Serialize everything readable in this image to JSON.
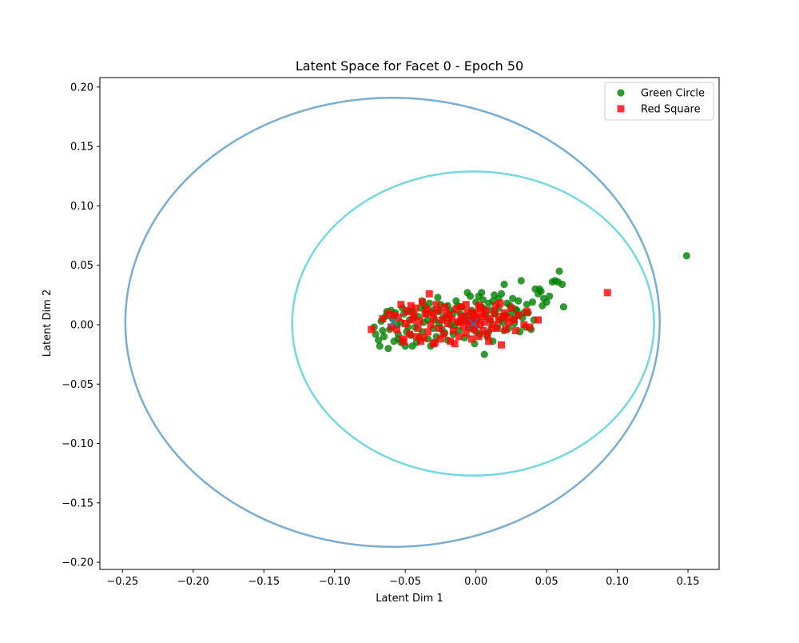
{
  "chart_data": {
    "type": "scatter",
    "title": "Latent Space for Facet 0 - Epoch 50",
    "xlabel": "Latent Dim 1",
    "ylabel": "Latent Dim 2",
    "xlim": [
      -0.266,
      0.172
    ],
    "ylim": [
      -0.206,
      0.208
    ],
    "xticks": [
      -0.25,
      -0.2,
      -0.15,
      -0.1,
      -0.05,
      0.0,
      0.05,
      0.1,
      0.15
    ],
    "xtick_labels": [
      "−0.25",
      "−0.20",
      "−0.15",
      "−0.10",
      "−0.05",
      "0.00",
      "0.05",
      "0.10",
      "0.15"
    ],
    "yticks": [
      -0.2,
      -0.15,
      -0.1,
      -0.05,
      0.0,
      0.05,
      0.1,
      0.15,
      0.2
    ],
    "ytick_labels": [
      "−0.20",
      "−0.15",
      "−0.10",
      "−0.05",
      "0.00",
      "0.05",
      "0.10",
      "0.15",
      "0.20"
    ],
    "grid": false,
    "legend_position": "top-right",
    "series": [
      {
        "name": "Green Circle",
        "marker": "circle",
        "color": "#008000",
        "points": [
          [
            0.149,
            0.058
          ],
          [
            0.062,
            0.015
          ],
          [
            0.059,
            0.045
          ],
          [
            0.061,
            0.034
          ],
          [
            0.058,
            0.036
          ],
          [
            0.056,
            0.037
          ],
          [
            0.054,
            0.036
          ],
          [
            0.048,
            0.022
          ],
          [
            0.046,
            0.028
          ],
          [
            0.045,
            0.03
          ],
          [
            0.042,
            0.03
          ],
          [
            0.04,
            0.019
          ],
          [
            0.036,
            0.017
          ],
          [
            0.034,
            0.01
          ],
          [
            0.032,
            0.037
          ],
          [
            0.03,
            0.02
          ],
          [
            0.028,
            0.013
          ],
          [
            0.027,
            0.005
          ],
          [
            0.025,
            0.01
          ],
          [
            0.022,
            0.018
          ],
          [
            0.02,
            0.034
          ],
          [
            0.018,
            0.026
          ],
          [
            0.016,
            0.022
          ],
          [
            0.013,
            0.025
          ],
          [
            0.011,
            0.012
          ],
          [
            0.009,
            0.018
          ],
          [
            0.007,
            0.008
          ],
          [
            0.005,
            0.021
          ],
          [
            0.004,
            0.027
          ],
          [
            0.002,
            0.024
          ],
          [
            0.0,
            0.019
          ],
          [
            -0.002,
            0.01
          ],
          [
            -0.004,
            0.024
          ],
          [
            -0.006,
            0.027
          ],
          [
            -0.008,
            0.007
          ],
          [
            -0.01,
            0.015
          ],
          [
            -0.012,
            0.002
          ],
          [
            -0.014,
            0.02
          ],
          [
            -0.016,
            0.01
          ],
          [
            -0.018,
            0.012
          ],
          [
            -0.02,
            0.016
          ],
          [
            -0.023,
            0.006
          ],
          [
            -0.025,
            0.017
          ],
          [
            -0.027,
            0.023
          ],
          [
            -0.029,
            0.004
          ],
          [
            -0.031,
            0.012
          ],
          [
            -0.033,
            0.018
          ],
          [
            -0.035,
            0.009
          ],
          [
            -0.037,
            0.002
          ],
          [
            -0.039,
            0.014
          ],
          [
            -0.041,
            0.007
          ],
          [
            -0.043,
            -0.002
          ],
          [
            -0.045,
            0.011
          ],
          [
            -0.047,
            0.004
          ],
          [
            -0.049,
            -0.006
          ],
          [
            -0.051,
            0.009
          ],
          [
            -0.053,
            0.002
          ],
          [
            -0.055,
            -0.008
          ],
          [
            -0.057,
            0.01
          ],
          [
            -0.059,
            0.005
          ],
          [
            -0.061,
            -0.004
          ],
          [
            -0.063,
            0.011
          ],
          [
            -0.065,
            -0.01
          ],
          [
            -0.067,
            0.003
          ],
          [
            -0.069,
            -0.013
          ],
          [
            -0.071,
            -0.008
          ],
          [
            -0.072,
            -0.002
          ],
          [
            -0.068,
            -0.018
          ],
          [
            -0.062,
            -0.02
          ],
          [
            -0.055,
            -0.012
          ],
          [
            -0.05,
            -0.018
          ],
          [
            -0.046,
            -0.009
          ],
          [
            -0.042,
            -0.015
          ],
          [
            -0.038,
            -0.006
          ],
          [
            -0.034,
            -0.012
          ],
          [
            -0.032,
            -0.018
          ],
          [
            -0.028,
            -0.01
          ],
          [
            -0.024,
            -0.004
          ],
          [
            -0.02,
            -0.013
          ],
          [
            -0.016,
            -0.008
          ],
          [
            -0.012,
            -0.005
          ],
          [
            -0.008,
            -0.011
          ],
          [
            -0.004,
            -0.003
          ],
          [
            -0.001,
            -0.016
          ],
          [
            0.003,
            -0.008
          ],
          [
            0.006,
            -0.025
          ],
          [
            0.009,
            -0.006
          ],
          [
            0.012,
            -0.014
          ],
          [
            0.015,
            -0.002
          ],
          [
            0.019,
            0.002
          ],
          [
            0.023,
            -0.003
          ],
          [
            0.027,
            0.001
          ],
          [
            0.031,
            -0.006
          ],
          [
            0.035,
            -0.002
          ],
          [
            0.039,
            -0.004
          ],
          [
            0.041,
            0.004
          ],
          [
            0.037,
            0.01
          ],
          [
            0.033,
            0.006
          ],
          [
            0.029,
            0.012
          ],
          [
            0.024,
            0.016
          ],
          [
            0.021,
            0.008
          ],
          [
            0.017,
            0.004
          ],
          [
            0.014,
            0.009
          ],
          [
            0.01,
            0.003
          ],
          [
            0.006,
            0.013
          ],
          [
            0.001,
            0.004
          ],
          [
            -0.003,
            0.012
          ],
          [
            -0.007,
            0.003
          ],
          [
            -0.011,
            0.009
          ],
          [
            -0.015,
            -0.001
          ],
          [
            -0.019,
            0.005
          ],
          [
            -0.022,
            -0.007
          ],
          [
            -0.026,
            0.001
          ],
          [
            -0.03,
            -0.003
          ],
          [
            -0.036,
            0.015
          ],
          [
            -0.04,
            -0.011
          ],
          [
            -0.044,
            0.006
          ],
          [
            -0.048,
            -0.002
          ],
          [
            -0.052,
            0.014
          ],
          [
            -0.056,
            0.0
          ],
          [
            -0.058,
            -0.014
          ],
          [
            -0.06,
            0.012
          ],
          [
            -0.064,
            0.007
          ],
          [
            -0.066,
            -0.005
          ],
          [
            -0.053,
            -0.015
          ],
          [
            -0.048,
            0.012
          ],
          [
            -0.038,
            0.02
          ],
          [
            -0.034,
            0.004
          ],
          [
            -0.026,
            0.011
          ],
          [
            -0.018,
            0.0
          ],
          [
            -0.013,
            0.016
          ],
          [
            -0.005,
            0.008
          ],
          [
            0.0,
            -0.006
          ],
          [
            0.004,
            0.015
          ],
          [
            0.008,
            -0.01
          ],
          [
            0.012,
            0.02
          ],
          [
            0.016,
            0.014
          ],
          [
            0.02,
            -0.005
          ],
          [
            0.026,
            0.022
          ],
          [
            0.03,
            0.008
          ],
          [
            0.044,
            0.026
          ],
          [
            0.05,
            0.019
          ],
          [
            0.052,
            0.024
          ],
          [
            0.047,
            0.016
          ],
          [
            -0.045,
            -0.018
          ]
        ]
      },
      {
        "name": "Red Square",
        "marker": "square",
        "color": "#ff0000",
        "points": [
          [
            0.093,
            0.027
          ],
          [
            0.044,
            0.004
          ],
          [
            0.038,
            -0.002
          ],
          [
            0.036,
            0.011
          ],
          [
            0.034,
            0.0
          ],
          [
            0.03,
            0.008
          ],
          [
            0.027,
            0.004
          ],
          [
            0.025,
            0.014
          ],
          [
            0.023,
            0.002
          ],
          [
            0.021,
            -0.004
          ],
          [
            0.019,
            0.007
          ],
          [
            0.018,
            -0.017
          ],
          [
            0.017,
            0.018
          ],
          [
            0.015,
            -0.003
          ],
          [
            0.013,
            0.01
          ],
          [
            0.012,
            0.0
          ],
          [
            0.01,
            0.005
          ],
          [
            0.008,
            -0.008
          ],
          [
            0.007,
            0.012
          ],
          [
            0.006,
            0.002
          ],
          [
            0.005,
            -0.005
          ],
          [
            0.004,
            0.009
          ],
          [
            0.003,
            0.0
          ],
          [
            0.002,
            -0.01
          ],
          [
            0.001,
            0.006
          ],
          [
            0.0,
            0.0
          ],
          [
            -0.001,
            -0.004
          ],
          [
            -0.002,
            0.008
          ],
          [
            -0.003,
            -0.012
          ],
          [
            -0.004,
            0.003
          ],
          [
            -0.005,
            -0.002
          ],
          [
            -0.006,
            0.011
          ],
          [
            -0.007,
            -0.007
          ],
          [
            -0.008,
            0.004
          ],
          [
            -0.009,
            -0.001
          ],
          [
            -0.01,
            0.007
          ],
          [
            -0.012,
            -0.01
          ],
          [
            -0.013,
            0.002
          ],
          [
            -0.014,
            0.013
          ],
          [
            -0.016,
            -0.005
          ],
          [
            -0.017,
            0.005
          ],
          [
            -0.018,
            -0.014
          ],
          [
            -0.02,
            0.001
          ],
          [
            -0.021,
            0.01
          ],
          [
            -0.023,
            -0.008
          ],
          [
            -0.024,
            0.004
          ],
          [
            -0.026,
            -0.003
          ],
          [
            -0.027,
            0.012
          ],
          [
            -0.029,
            -0.015
          ],
          [
            -0.03,
            0.006
          ],
          [
            -0.032,
            0.0
          ],
          [
            -0.033,
            0.026
          ],
          [
            -0.034,
            -0.006
          ],
          [
            -0.036,
            0.009
          ],
          [
            -0.037,
            -0.011
          ],
          [
            -0.038,
            0.019
          ],
          [
            -0.04,
            0.003
          ],
          [
            -0.041,
            -0.003
          ],
          [
            -0.043,
            0.014
          ],
          [
            -0.045,
            0.004
          ],
          [
            -0.047,
            -0.008
          ],
          [
            -0.049,
            0.011
          ],
          [
            -0.05,
            0.001
          ],
          [
            -0.051,
            -0.014
          ],
          [
            -0.053,
            0.017
          ],
          [
            -0.055,
            0.006
          ],
          [
            -0.056,
            -0.004
          ],
          [
            -0.058,
            0.008
          ],
          [
            -0.06,
            -0.002
          ],
          [
            -0.074,
            -0.004
          ],
          [
            -0.066,
            0.005
          ],
          [
            -0.062,
            0.009
          ],
          [
            -0.046,
            0.016
          ],
          [
            -0.039,
            -0.014
          ],
          [
            -0.028,
            0.017
          ],
          [
            -0.022,
            0.015
          ],
          [
            -0.015,
            -0.016
          ],
          [
            -0.011,
            0.015
          ],
          [
            -0.001,
            0.01
          ],
          [
            0.009,
            -0.014
          ],
          [
            0.014,
            0.016
          ],
          [
            0.02,
            0.01
          ],
          [
            0.028,
            -0.005
          ],
          [
            0.016,
            0.004
          ],
          [
            0.011,
            -0.003
          ],
          [
            0.003,
            0.014
          ],
          [
            -0.003,
            0.004
          ],
          [
            -0.019,
            0.008
          ],
          [
            -0.031,
            0.01
          ],
          [
            -0.042,
            -0.01
          ],
          [
            -0.035,
            0.013
          ],
          [
            -0.025,
            -0.012
          ],
          [
            -0.011,
            0.003
          ],
          [
            0.006,
            0.007
          ],
          [
            0.022,
            0.006
          ],
          [
            -0.052,
            -0.012
          ],
          [
            -0.044,
            0.008
          ],
          [
            -0.007,
            0.017
          ],
          [
            0.002,
            0.016
          ],
          [
            -0.03,
            -0.016
          ]
        ]
      }
    ],
    "centers": [
      {
        "x": -0.059,
        "y": 0.002,
        "marker": "x",
        "color": "#1f77b4"
      },
      {
        "x": -0.002,
        "y": 0.001,
        "marker": "x",
        "color": "#1f77b4"
      }
    ],
    "ellipses": [
      {
        "cx": -0.059,
        "cy": 0.002,
        "rx": 0.189,
        "ry": 0.189,
        "color": "#1f77b4"
      },
      {
        "cx": -0.002,
        "cy": 0.001,
        "rx": 0.128,
        "ry": 0.128,
        "color": "#17becf"
      }
    ]
  }
}
